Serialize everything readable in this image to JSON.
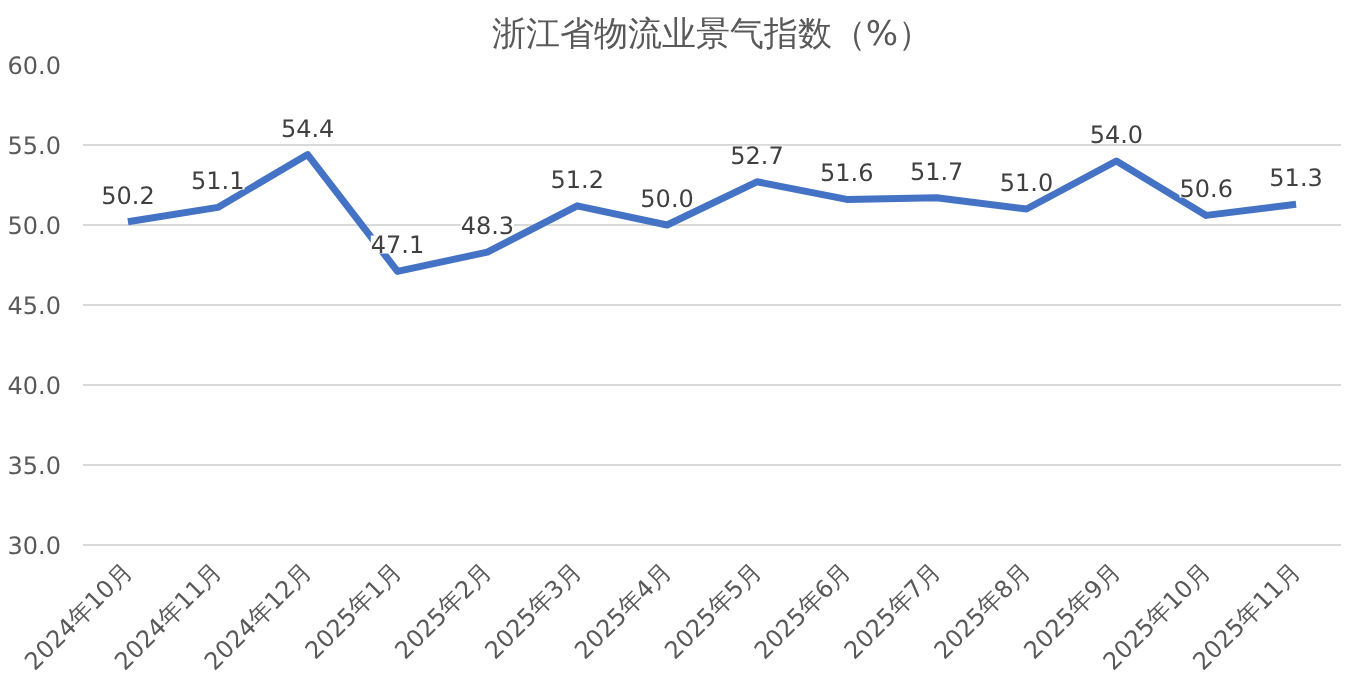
{
  "chart_data": {
    "type": "line",
    "title": "浙江省物流业景气指数（%）",
    "categories": [
      "2024年10月",
      "2024年11月",
      "2024年12月",
      "2025年1月",
      "2025年2月",
      "2025年3月",
      "2025年4月",
      "2025年5月",
      "2025年6月",
      "2025年7月",
      "2025年8月",
      "2025年9月",
      "2025年10月",
      "2025年11月"
    ],
    "series": [
      {
        "color": "#4472c4",
        "values": [
          50.2,
          51.1,
          54.4,
          47.1,
          48.3,
          51.2,
          50.0,
          52.7,
          51.6,
          51.7,
          51.0,
          54.0,
          50.6,
          51.3
        ],
        "value_labels": [
          "50.2",
          "51.1",
          "54.4",
          "47.1",
          "48.3",
          "51.2",
          "50.0",
          "52.7",
          "51.6",
          "51.7",
          "51.0",
          "54.0",
          "50.6",
          "51.3"
        ]
      }
    ],
    "ylim": [
      30,
      60
    ],
    "yticks": [
      {
        "value": 30,
        "label": "30.0"
      },
      {
        "value": 35,
        "label": "35.0"
      },
      {
        "value": 40,
        "label": "40.0"
      },
      {
        "value": 45,
        "label": "45.0"
      },
      {
        "value": 50,
        "label": "50.0"
      },
      {
        "value": 55,
        "label": "55.0"
      },
      {
        "value": 60,
        "label": "60.0"
      }
    ],
    "grid": "y",
    "marker": "none",
    "line_style": "solid"
  }
}
